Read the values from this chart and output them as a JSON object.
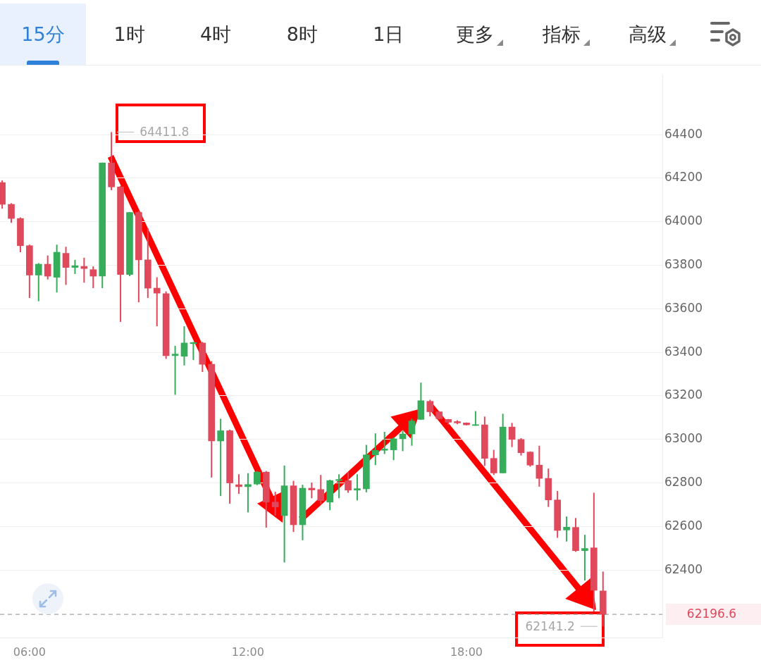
{
  "chart_data": {
    "type": "candlestick",
    "x": [
      5.25,
      5.5,
      5.75,
      6,
      6.25,
      6.5,
      6.75,
      7,
      7.25,
      7.5,
      7.75,
      8,
      8.25,
      8.5,
      8.75,
      9,
      9.25,
      9.5,
      9.75,
      10,
      10.25,
      10.5,
      10.75,
      11,
      11.25,
      11.5,
      11.75,
      12,
      12.25,
      12.5,
      12.75,
      13,
      13.25,
      13.5,
      13.75,
      14,
      14.25,
      14.5,
      14.75,
      15,
      15.25,
      15.5,
      15.75,
      16,
      16.25,
      16.5,
      16.75,
      17,
      17.25,
      17.5,
      17.75,
      18,
      18.25,
      18.5,
      18.75,
      19,
      19.25,
      19.5,
      19.75,
      20,
      20.25,
      20.5,
      20.75,
      21,
      21.25,
      21.5,
      21.75
    ],
    "ohlc": [
      [
        64180,
        64190,
        64060,
        64080
      ],
      [
        64080,
        64085,
        63995,
        64015
      ],
      [
        64015,
        64020,
        63860,
        63890
      ],
      [
        63890,
        63895,
        63650,
        63755
      ],
      [
        63755,
        63810,
        63635,
        63805
      ],
      [
        63805,
        63845,
        63735,
        63750
      ],
      [
        63745,
        63895,
        63675,
        63860
      ],
      [
        63855,
        63885,
        63710,
        63790
      ],
      [
        63790,
        63825,
        63760,
        63798
      ],
      [
        63795,
        63835,
        63720,
        63785
      ],
      [
        63780,
        63795,
        63695,
        63750
      ],
      [
        63750,
        64272,
        63695,
        64270
      ],
      [
        64270,
        64411.8,
        64145,
        64160
      ],
      [
        64160,
        64165,
        63540,
        63758
      ],
      [
        63758,
        64045,
        63750,
        64043
      ],
      [
        64043,
        64048,
        63630,
        63825
      ],
      [
        63825,
        63970,
        63650,
        63695
      ],
      [
        63695,
        63745,
        63520,
        63672
      ],
      [
        63670,
        63680,
        63370,
        63385
      ],
      [
        63385,
        63430,
        63205,
        63392
      ],
      [
        63382,
        63520,
        63340,
        63443
      ],
      [
        63440,
        63448,
        63365,
        63445
      ],
      [
        63443,
        63448,
        63310,
        63345
      ],
      [
        63345,
        63360,
        62825,
        62993
      ],
      [
        62993,
        63095,
        62740,
        63040
      ],
      [
        63040,
        63045,
        62705,
        62800
      ],
      [
        62792,
        62840,
        62750,
        62783
      ],
      [
        62783,
        62845,
        62665,
        62793
      ],
      [
        62795,
        62855,
        62790,
        62850
      ],
      [
        62850,
        62855,
        62595,
        62712
      ],
      [
        62712,
        62760,
        62650,
        62690
      ],
      [
        62650,
        62880,
        62435,
        62787
      ],
      [
        62787,
        62810,
        62575,
        62608
      ],
      [
        62608,
        62792,
        62537,
        62776
      ],
      [
        62776,
        62802,
        62730,
        62768
      ],
      [
        62770,
        62837,
        62703,
        62719
      ],
      [
        62712,
        62815,
        62675,
        62811
      ],
      [
        62811,
        62840,
        62730,
        62816
      ],
      [
        62811,
        62850,
        62755,
        62767
      ],
      [
        62767,
        62840,
        62720,
        62774
      ],
      [
        62773,
        62975,
        62757,
        62929
      ],
      [
        62929,
        63028,
        62882,
        62950
      ],
      [
        62950,
        63035,
        62933,
        62956
      ],
      [
        62952,
        63010,
        62905,
        63003
      ],
      [
        63003,
        63040,
        62946,
        63025
      ],
      [
        63025,
        63095,
        62971,
        63085
      ],
      [
        63092,
        63261,
        63090,
        63178
      ],
      [
        63175,
        63182,
        63106,
        63127
      ],
      [
        63127,
        63130,
        63092,
        63095
      ],
      [
        63092,
        63094,
        63067,
        63079
      ],
      [
        63082,
        63088,
        63070,
        63076
      ],
      [
        63076,
        63078,
        63065,
        63067
      ],
      [
        63064,
        63130,
        63063,
        63068
      ],
      [
        63067,
        63105,
        62878,
        62913
      ],
      [
        62913,
        62952,
        62837,
        62846
      ],
      [
        62846,
        63118,
        62845,
        63057
      ],
      [
        63057,
        63076,
        62965,
        63000
      ],
      [
        63000,
        63006,
        62926,
        62939
      ],
      [
        62942,
        62945,
        62875,
        62882
      ],
      [
        62882,
        62971,
        62783,
        62821
      ],
      [
        62821,
        62866,
        62690,
        62722
      ],
      [
        62722,
        62763,
        62548,
        62582
      ],
      [
        62584,
        62646,
        62531,
        62597
      ],
      [
        62596,
        62639,
        62484,
        62489
      ],
      [
        62489,
        62562,
        62352,
        62499
      ],
      [
        62502,
        62755,
        62210,
        62307
      ],
      [
        62304,
        62393,
        62141.2,
        62196.6
      ]
    ],
    "colors": [
      "#e0485b",
      "#e0485b",
      "#e0485b",
      "#e0485b",
      "#35ad5b",
      "#e0485b",
      "#35ad5b",
      "#e0485b",
      "#35ad5b",
      "#e0485b",
      "#e0485b",
      "#35ad5b",
      "#e0485b",
      "#e0485b",
      "#35ad5b",
      "#e0485b",
      "#e0485b",
      "#e0485b",
      "#e0485b",
      "#35ad5b",
      "#35ad5b",
      "#35ad5b",
      "#e0485b",
      "#e0485b",
      "#35ad5b",
      "#e0485b",
      "#e0485b",
      "#35ad5b",
      "#35ad5b",
      "#e0485b",
      "#e0485b",
      "#35ad5b",
      "#e0485b",
      "#35ad5b",
      "#e0485b",
      "#e0485b",
      "#35ad5b",
      "#35ad5b",
      "#e0485b",
      "#35ad5b",
      "#35ad5b",
      "#35ad5b",
      "#35ad5b",
      "#35ad5b",
      "#35ad5b",
      "#35ad5b",
      "#35ad5b",
      "#e0485b",
      "#e0485b",
      "#e0485b",
      "#e0485b",
      "#e0485b",
      "#35ad5b",
      "#e0485b",
      "#e0485b",
      "#35ad5b",
      "#e0485b",
      "#e0485b",
      "#e0485b",
      "#e0485b",
      "#e0485b",
      "#e0485b",
      "#35ad5b",
      "#e0485b",
      "#35ad5b",
      "#e0485b",
      "#e0485b"
    ],
    "xlim": [
      5.19,
      23.38
    ],
    "xticks": [
      {
        "value": 6,
        "label": "06:00"
      },
      {
        "value": 12,
        "label": "12:00"
      },
      {
        "value": 18,
        "label": "18:00"
      }
    ],
    "ylim": [
      62090,
      64675
    ],
    "yticks": [
      62400,
      62600,
      62800,
      63000,
      63200,
      63400,
      63600,
      63800,
      64000,
      64200,
      64400
    ],
    "grid": "y",
    "ref_lines": [
      {
        "axis": "y",
        "value": 62196.6,
        "label": "62196.6",
        "color": "#a3a3a3",
        "line_style": "dashed"
      }
    ],
    "annotations": [
      "64411.8",
      "62141.2",
      "15分",
      "1时",
      "4时",
      "8时",
      "1日",
      "更多",
      "指标",
      "高级"
    ]
  }
}
